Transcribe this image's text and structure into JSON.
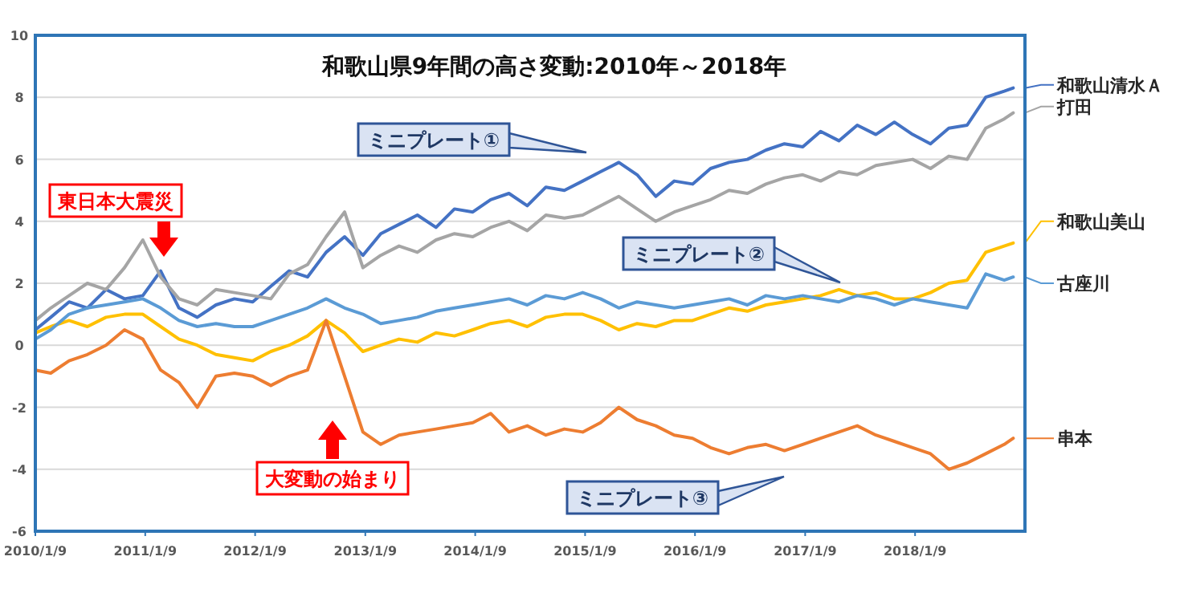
{
  "chart_data": {
    "type": "line",
    "title": "和歌山県9年間の高さ変動:2010年～2018年",
    "xlim": [
      "2010-01-09",
      "2019-01-09"
    ],
    "xticks": [
      {
        "value": "2010-01-09",
        "label": "2010/1/9"
      },
      {
        "value": "2011-01-09",
        "label": "2011/1/9"
      },
      {
        "value": "2012-01-09",
        "label": "2012/1/9"
      },
      {
        "value": "2013-01-09",
        "label": "2013/1/9"
      },
      {
        "value": "2014-01-09",
        "label": "2014/1/9"
      },
      {
        "value": "2015-01-09",
        "label": "2015/1/9"
      },
      {
        "value": "2016-01-09",
        "label": "2016/1/9"
      },
      {
        "value": "2017-01-09",
        "label": "2017/1/9"
      },
      {
        "value": "2018-01-09",
        "label": "2018/1/9"
      }
    ],
    "ylim": [
      -6,
      10
    ],
    "yticks": [
      -6,
      -4,
      -2,
      0,
      2,
      4,
      6,
      8,
      10
    ],
    "grid": "y",
    "legend": "right",
    "marker": "none",
    "line_style": "solid",
    "x": [
      "2010-01-09",
      "2010-03",
      "2010-05",
      "2010-07",
      "2010-09",
      "2010-11",
      "2011-01",
      "2011-03",
      "2011-05",
      "2011-07",
      "2011-09",
      "2011-11",
      "2012-01",
      "2012-03",
      "2012-05",
      "2012-07",
      "2012-09",
      "2012-11",
      "2013-01",
      "2013-03",
      "2013-05",
      "2013-07",
      "2013-09",
      "2013-11",
      "2014-01",
      "2014-03",
      "2014-05",
      "2014-07",
      "2014-09",
      "2014-11",
      "2015-01",
      "2015-03",
      "2015-05",
      "2015-07",
      "2015-09",
      "2015-11",
      "2016-01",
      "2016-03",
      "2016-05",
      "2016-07",
      "2016-09",
      "2016-11",
      "2017-01",
      "2017-03",
      "2017-05",
      "2017-07",
      "2017-09",
      "2017-11",
      "2018-01",
      "2018-03",
      "2018-05",
      "2018-07",
      "2018-09",
      "2018-11",
      "2018-12"
    ],
    "series": [
      {
        "name": "和歌山清水Ａ",
        "color": "#4472c4",
        "values": [
          0.5,
          0.9,
          1.4,
          1.2,
          1.8,
          1.5,
          1.6,
          2.4,
          1.2,
          0.9,
          1.3,
          1.5,
          1.4,
          1.9,
          2.4,
          2.2,
          3.0,
          3.5,
          2.9,
          3.6,
          3.9,
          4.2,
          3.8,
          4.4,
          4.3,
          4.7,
          4.9,
          4.5,
          5.1,
          5.0,
          5.3,
          5.6,
          5.9,
          5.5,
          4.8,
          5.3,
          5.2,
          5.7,
          5.9,
          6.0,
          6.3,
          6.5,
          6.4,
          6.9,
          6.6,
          7.1,
          6.8,
          7.2,
          6.8,
          6.5,
          7.0,
          7.1,
          8.0,
          8.2,
          8.3
        ]
      },
      {
        "name": "打田",
        "color": "#a5a5a5",
        "values": [
          0.8,
          1.2,
          1.6,
          2.0,
          1.8,
          2.5,
          3.4,
          2.2,
          1.5,
          1.3,
          1.8,
          1.7,
          1.6,
          1.5,
          2.3,
          2.6,
          3.5,
          4.3,
          2.5,
          2.9,
          3.2,
          3.0,
          3.4,
          3.6,
          3.5,
          3.8,
          4.0,
          3.7,
          4.2,
          4.1,
          4.2,
          4.5,
          4.8,
          4.4,
          4.0,
          4.3,
          4.5,
          4.7,
          5.0,
          4.9,
          5.2,
          5.4,
          5.5,
          5.3,
          5.6,
          5.5,
          5.8,
          5.9,
          6.0,
          5.7,
          6.1,
          6.0,
          7.0,
          7.3,
          7.5
        ]
      },
      {
        "name": "和歌山美山",
        "color": "#ffc000",
        "values": [
          0.4,
          0.6,
          0.8,
          0.6,
          0.9,
          1.0,
          1.0,
          0.6,
          0.2,
          0.0,
          -0.3,
          -0.4,
          -0.5,
          -0.2,
          0.0,
          0.3,
          0.8,
          0.4,
          -0.2,
          0.0,
          0.2,
          0.1,
          0.4,
          0.3,
          0.5,
          0.7,
          0.8,
          0.6,
          0.9,
          1.0,
          1.0,
          0.8,
          0.5,
          0.7,
          0.6,
          0.8,
          0.8,
          1.0,
          1.2,
          1.1,
          1.3,
          1.4,
          1.5,
          1.6,
          1.8,
          1.6,
          1.7,
          1.5,
          1.5,
          1.7,
          2.0,
          2.1,
          3.0,
          3.2,
          3.3
        ]
      },
      {
        "name": "古座川",
        "color": "#5b9bd5",
        "values": [
          0.2,
          0.5,
          1.0,
          1.2,
          1.3,
          1.4,
          1.5,
          1.2,
          0.8,
          0.6,
          0.7,
          0.6,
          0.6,
          0.8,
          1.0,
          1.2,
          1.5,
          1.2,
          1.0,
          0.7,
          0.8,
          0.9,
          1.1,
          1.2,
          1.3,
          1.4,
          1.5,
          1.3,
          1.6,
          1.5,
          1.7,
          1.5,
          1.2,
          1.4,
          1.3,
          1.2,
          1.3,
          1.4,
          1.5,
          1.3,
          1.6,
          1.5,
          1.6,
          1.5,
          1.4,
          1.6,
          1.5,
          1.3,
          1.5,
          1.4,
          1.3,
          1.2,
          2.3,
          2.1,
          2.2
        ]
      },
      {
        "name": "串本",
        "color": "#ed7d31",
        "values": [
          -0.8,
          -0.9,
          -0.5,
          -0.3,
          0.0,
          0.5,
          0.2,
          -0.8,
          -1.2,
          -2.0,
          -1.0,
          -0.9,
          -1.0,
          -1.3,
          -1.0,
          -0.8,
          0.8,
          -1.0,
          -2.8,
          -3.2,
          -2.9,
          -2.8,
          -2.7,
          -2.6,
          -2.5,
          -2.2,
          -2.8,
          -2.6,
          -2.9,
          -2.7,
          -2.8,
          -2.5,
          -2.0,
          -2.4,
          -2.6,
          -2.9,
          -3.0,
          -3.3,
          -3.5,
          -3.3,
          -3.2,
          -3.4,
          -3.2,
          -3.0,
          -2.8,
          -2.6,
          -2.9,
          -3.1,
          -3.3,
          -3.5,
          -4.0,
          -3.8,
          -3.5,
          -3.2,
          -3.0
        ]
      }
    ],
    "annotations": [
      "東日本大震災",
      "大変動の始まり",
      "ミニプレート①",
      "ミニプレート②",
      "ミニプレート③"
    ]
  }
}
